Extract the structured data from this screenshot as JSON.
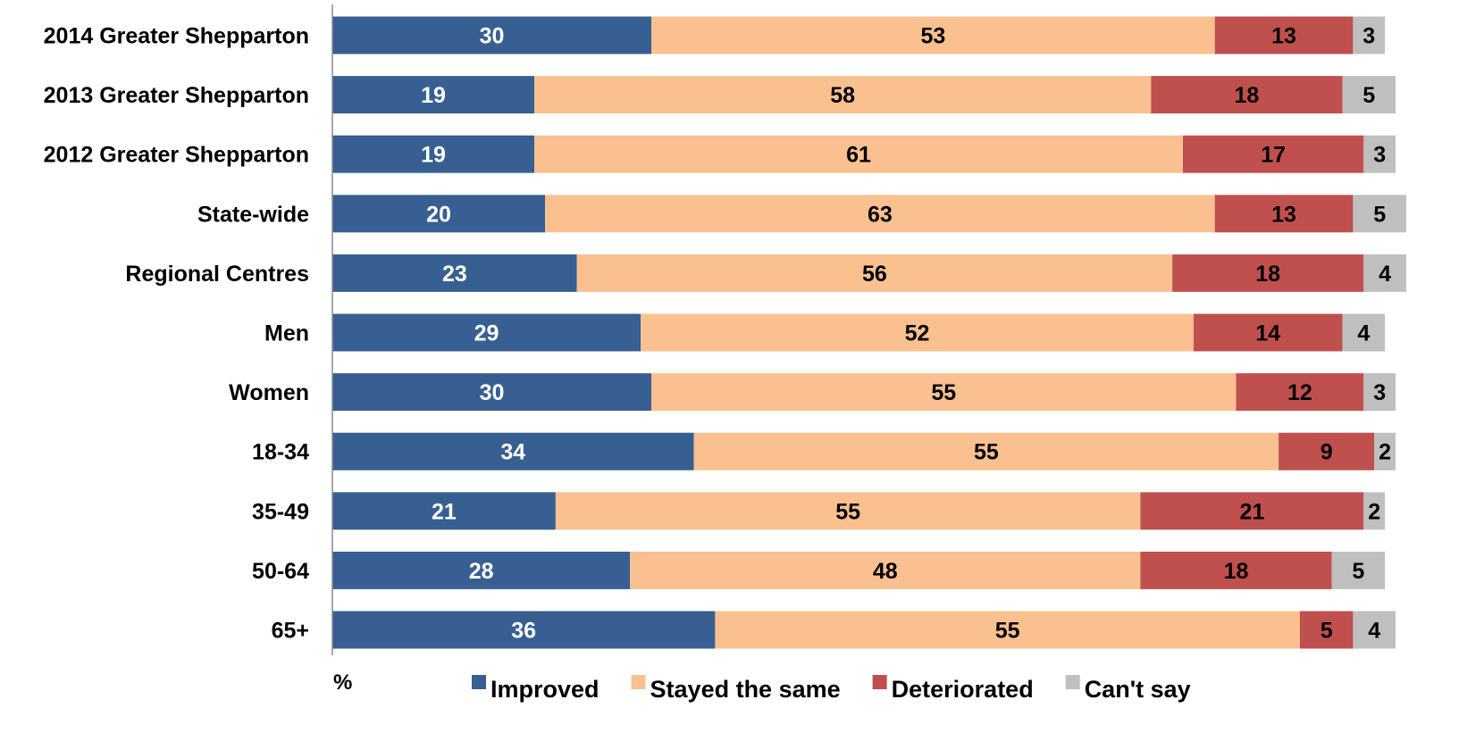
{
  "chart_data": {
    "type": "bar",
    "orientation": "horizontal",
    "stacked": true,
    "unit_label": "%",
    "xlim": [
      0,
      100
    ],
    "grid": false,
    "legend_position": "bottom",
    "categories": [
      "2014 Greater Shepparton",
      "2013 Greater Shepparton",
      "2012 Greater Shepparton",
      "State-wide",
      "Regional Centres",
      "Men",
      "Women",
      "18-34",
      "35-49",
      "50-64",
      "65+"
    ],
    "series": [
      {
        "name": "Improved",
        "color": "#375f92",
        "label_color": "#ffffff",
        "values": [
          30,
          19,
          19,
          20,
          23,
          29,
          30,
          34,
          21,
          28,
          36
        ]
      },
      {
        "name": "Stayed the same",
        "color": "#fac090",
        "label_color": "#000000",
        "values": [
          53,
          58,
          61,
          63,
          56,
          52,
          55,
          55,
          55,
          48,
          55
        ]
      },
      {
        "name": "Deteriorated",
        "color": "#c0504d",
        "label_color": "#000000",
        "values": [
          13,
          18,
          17,
          13,
          18,
          14,
          12,
          9,
          21,
          18,
          5
        ]
      },
      {
        "name": "Can't say",
        "color": "#bfbfbf",
        "label_color": "#000000",
        "values": [
          3,
          5,
          3,
          5,
          4,
          4,
          3,
          2,
          2,
          5,
          4
        ]
      }
    ]
  }
}
